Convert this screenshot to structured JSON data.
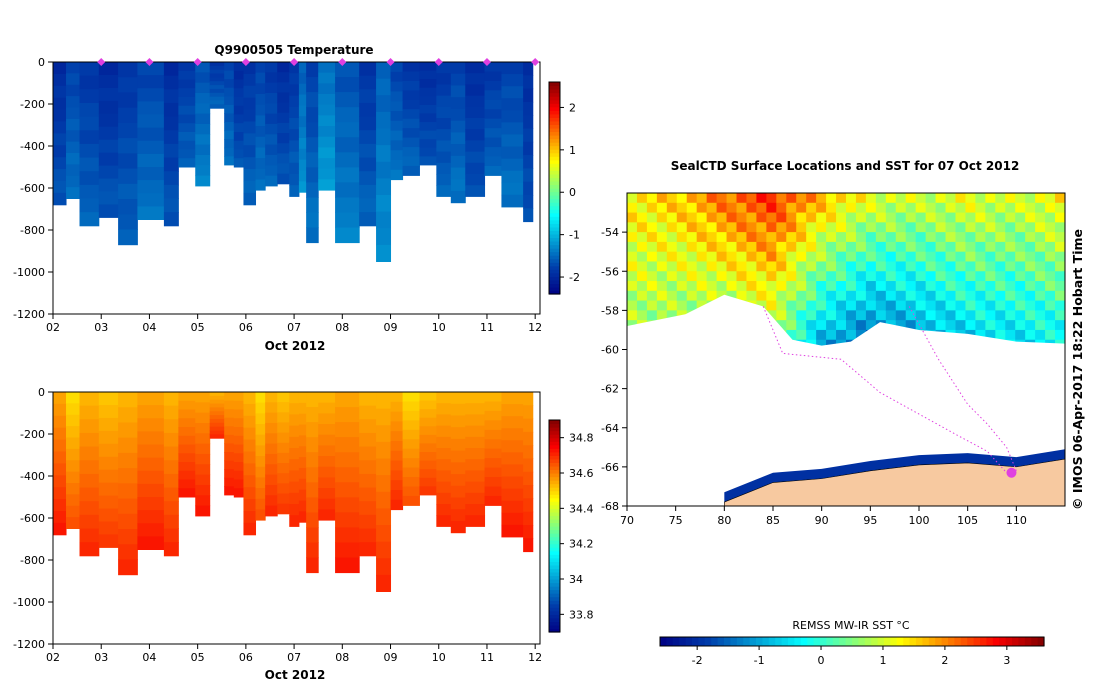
{
  "chart_data": [
    {
      "type": "heatmap",
      "title": "Q9900505  Temperature",
      "xlabel": "Oct 2012",
      "x_ticks": [
        "02",
        "03",
        "04",
        "05",
        "06",
        "07",
        "08",
        "09",
        "10",
        "11",
        "12"
      ],
      "y_ticks": [
        "0",
        "-200",
        "-400",
        "-600",
        "-800",
        "-1000",
        "-1200"
      ],
      "ylim": [
        -1200,
        0
      ],
      "xlim": [
        2,
        12.1
      ],
      "colorbar_ticks": [
        "2",
        "1",
        "0",
        "-1",
        "-2"
      ],
      "colorbar_range": [
        -2.4,
        2.6
      ],
      "surface_markers_day": [
        3,
        4,
        5,
        6,
        7,
        8,
        9,
        10,
        11,
        12
      ],
      "profile_start_days": [
        2.0,
        2.27,
        2.55,
        2.95,
        3.35,
        3.75,
        4.3,
        4.6,
        4.95,
        5.25,
        5.55,
        5.75,
        5.95,
        6.2,
        6.4,
        6.65,
        6.9,
        7.1,
        7.25,
        7.5,
        7.85,
        8.35,
        8.7,
        9.0,
        9.25,
        9.6,
        9.95,
        10.25,
        10.55,
        10.95,
        11.3,
        11.75
      ],
      "profile_depths": [
        -680,
        -650,
        -780,
        -740,
        -870,
        -750,
        -780,
        -500,
        -590,
        -220,
        -490,
        -500,
        -680,
        -610,
        -590,
        -580,
        -640,
        -620,
        -860,
        -610,
        -860,
        -780,
        -950,
        -560,
        -540,
        -490,
        -640,
        -670,
        -640,
        -540,
        -690,
        -760
      ],
      "profile_temps": [
        -2.0,
        -1.8,
        -1.9,
        -2.0,
        -1.9,
        -1.8,
        -2.0,
        -1.9,
        -1.7,
        -1.9,
        -1.8,
        -2.0,
        -1.9,
        -1.8,
        -1.9,
        -2.0,
        -1.9,
        -1.6,
        -1.8,
        -1.5,
        -1.7,
        -1.9,
        -1.6,
        -1.8,
        -1.9,
        -2.0,
        -1.9,
        -1.8,
        -2.0,
        -1.9,
        -1.8,
        -2.0
      ]
    },
    {
      "type": "heatmap",
      "title": "",
      "xlabel": "Oct 2012",
      "x_ticks": [
        "02",
        "03",
        "04",
        "05",
        "06",
        "07",
        "08",
        "09",
        "10",
        "11",
        "12"
      ],
      "y_ticks": [
        "0",
        "-200",
        "-400",
        "-600",
        "-800",
        "-1000",
        "-1200"
      ],
      "ylim": [
        -1200,
        0
      ],
      "xlim": [
        2,
        12.1
      ],
      "colorbar_ticks": [
        "34.8",
        "34.6",
        "34.4",
        "34.2",
        "34",
        "33.8"
      ],
      "colorbar_range": [
        33.7,
        34.9
      ],
      "profile_start_days": [
        2.0,
        2.27,
        2.55,
        2.95,
        3.35,
        3.75,
        4.3,
        4.6,
        4.95,
        5.25,
        5.55,
        5.75,
        5.95,
        6.2,
        6.4,
        6.65,
        6.9,
        7.1,
        7.25,
        7.5,
        7.85,
        8.35,
        8.7,
        9.0,
        9.25,
        9.6,
        9.95,
        10.25,
        10.55,
        10.95,
        11.3,
        11.75
      ],
      "profile_depths": [
        -680,
        -650,
        -780,
        -740,
        -870,
        -750,
        -780,
        -500,
        -590,
        -220,
        -490,
        -500,
        -680,
        -610,
        -590,
        -580,
        -640,
        -620,
        -860,
        -610,
        -860,
        -780,
        -950,
        -560,
        -540,
        -490,
        -640,
        -670,
        -640,
        -540,
        -690,
        -760
      ],
      "surface_salinity": [
        34.62,
        34.55,
        34.6,
        34.58,
        34.6,
        34.62,
        34.6,
        34.62,
        34.62,
        34.6,
        34.62,
        34.62,
        34.6,
        34.55,
        34.6,
        34.58,
        34.6,
        34.6,
        34.6,
        34.6,
        34.62,
        34.6,
        34.6,
        34.6,
        34.55,
        34.58,
        34.6,
        34.6,
        34.6,
        34.6,
        34.62,
        34.62
      ]
    },
    {
      "type": "heatmap",
      "title": "SealCTD Surface Locations and SST for 07 Oct 2012",
      "xlim": [
        70,
        115
      ],
      "ylim": [
        -68,
        -52
      ],
      "x_ticks": [
        "70",
        "75",
        "80",
        "85",
        "90",
        "95",
        "100",
        "105",
        "110"
      ],
      "y_ticks": [
        "-54",
        "-56",
        "-58",
        "-60",
        "-62",
        "-64",
        "-66",
        "-68"
      ],
      "colorbar_label": "REMSS MW-IR SST °C",
      "colorbar_ticks": [
        "-2",
        "-1",
        "0",
        "1",
        "2",
        "3"
      ],
      "colorbar_range": [
        -2.6,
        3.6
      ],
      "side_label": "© IMOS 06-Apr-2017 18:22 Hobart Time",
      "sst_band": [
        {
          "lon": 70,
          "north": 1.4,
          "south": 0.6
        },
        {
          "lon": 75,
          "north": 1.6,
          "south": 0.4
        },
        {
          "lon": 80,
          "north": 2.2,
          "south": 0.2
        },
        {
          "lon": 85,
          "north": 2.6,
          "south": 0.5
        },
        {
          "lon": 90,
          "north": 1.8,
          "south": -1.0
        },
        {
          "lon": 95,
          "north": 1.2,
          "south": -1.6
        },
        {
          "lon": 100,
          "north": 1.0,
          "south": -1.2
        },
        {
          "lon": 105,
          "north": 1.2,
          "south": -0.8
        },
        {
          "lon": 110,
          "north": 1.0,
          "south": -0.6
        },
        {
          "lon": 115,
          "north": 1.4,
          "south": -0.4
        }
      ],
      "ice_edge_lat": [
        {
          "lon": 70,
          "lat": -58.8
        },
        {
          "lon": 76,
          "lat": -58.2
        },
        {
          "lon": 80,
          "lat": -57.2
        },
        {
          "lon": 84,
          "lat": -57.8
        },
        {
          "lon": 87,
          "lat": -59.5
        },
        {
          "lon": 90,
          "lat": -59.8
        },
        {
          "lon": 93,
          "lat": -59.6
        },
        {
          "lon": 96,
          "lat": -58.6
        },
        {
          "lon": 100,
          "lat": -59.0
        },
        {
          "lon": 105,
          "lat": -59.2
        },
        {
          "lon": 110,
          "lat": -59.6
        },
        {
          "lon": 115,
          "lat": -59.7
        }
      ],
      "coast_lat": [
        {
          "lon": 80,
          "lat": -67.8
        },
        {
          "lon": 85,
          "lat": -66.8
        },
        {
          "lon": 90,
          "lat": -66.6
        },
        {
          "lon": 95,
          "lat": -66.2
        },
        {
          "lon": 100,
          "lat": -65.9
        },
        {
          "lon": 105,
          "lat": -65.8
        },
        {
          "lon": 110,
          "lat": -66.0
        },
        {
          "lon": 115,
          "lat": -65.6
        }
      ],
      "track": [
        {
          "lon": 84,
          "lat": -57.8
        },
        {
          "lon": 86,
          "lat": -60.2
        },
        {
          "lon": 92,
          "lat": -60.5
        },
        {
          "lon": 96,
          "lat": -62.2
        },
        {
          "lon": 100,
          "lat": -63.3
        },
        {
          "lon": 104,
          "lat": -64.4
        },
        {
          "lon": 107,
          "lat": -65.2
        },
        {
          "lon": 109,
          "lat": -66.3
        }
      ],
      "track_east": [
        {
          "lon": 99,
          "lat": -57.8
        },
        {
          "lon": 102,
          "lat": -60.5
        },
        {
          "lon": 105,
          "lat": -62.8
        },
        {
          "lon": 107,
          "lat": -63.8
        },
        {
          "lon": 109,
          "lat": -65.0
        },
        {
          "lon": 110,
          "lat": -66.2
        }
      ],
      "current_location": {
        "lon": 109.5,
        "lat": -66.3
      }
    }
  ],
  "colors": {
    "land": "#f7c9a0",
    "track": "#e040e0",
    "marker": "#e040e0"
  }
}
